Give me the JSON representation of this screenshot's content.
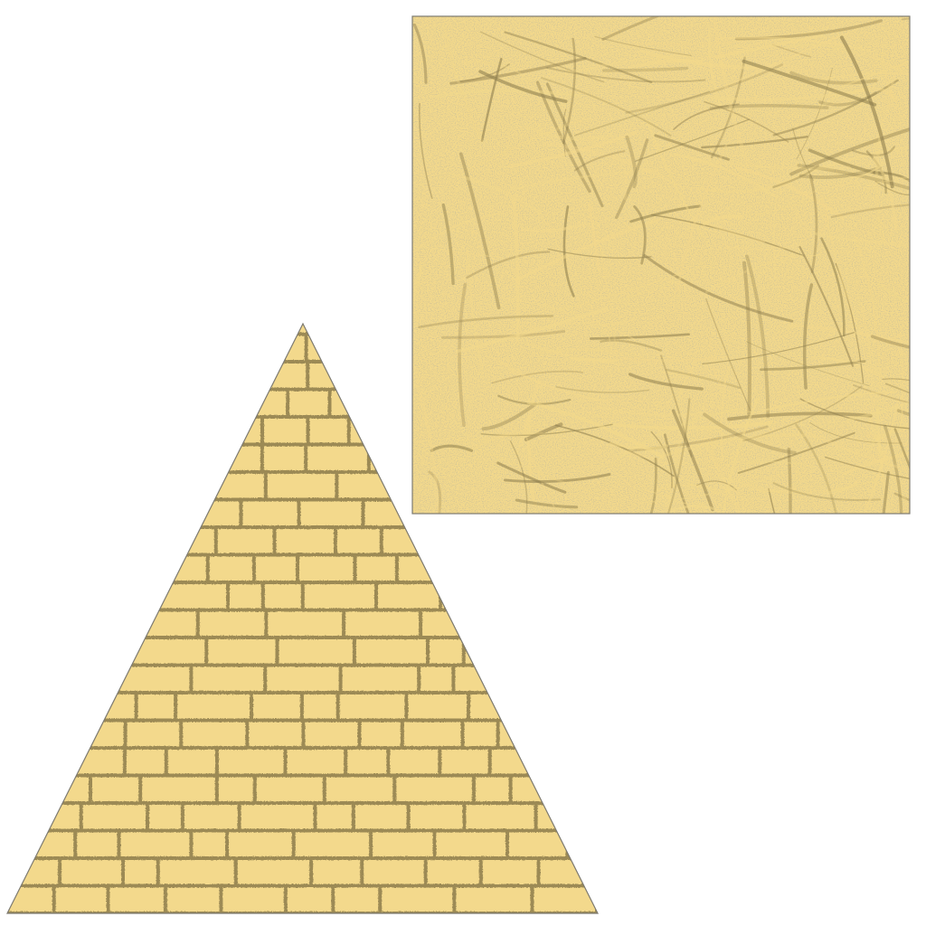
{
  "scene": {
    "background": "#ffffff",
    "colors": {
      "sand": "#f3d98c",
      "mortar": "#9c8a55",
      "outline": "#7d7a70",
      "grain": "#8f7f4e"
    },
    "shapes": [
      {
        "name": "sandstone-square",
        "kind": "textured-square"
      },
      {
        "name": "brick-pyramid",
        "kind": "brick-triangle"
      }
    ]
  }
}
